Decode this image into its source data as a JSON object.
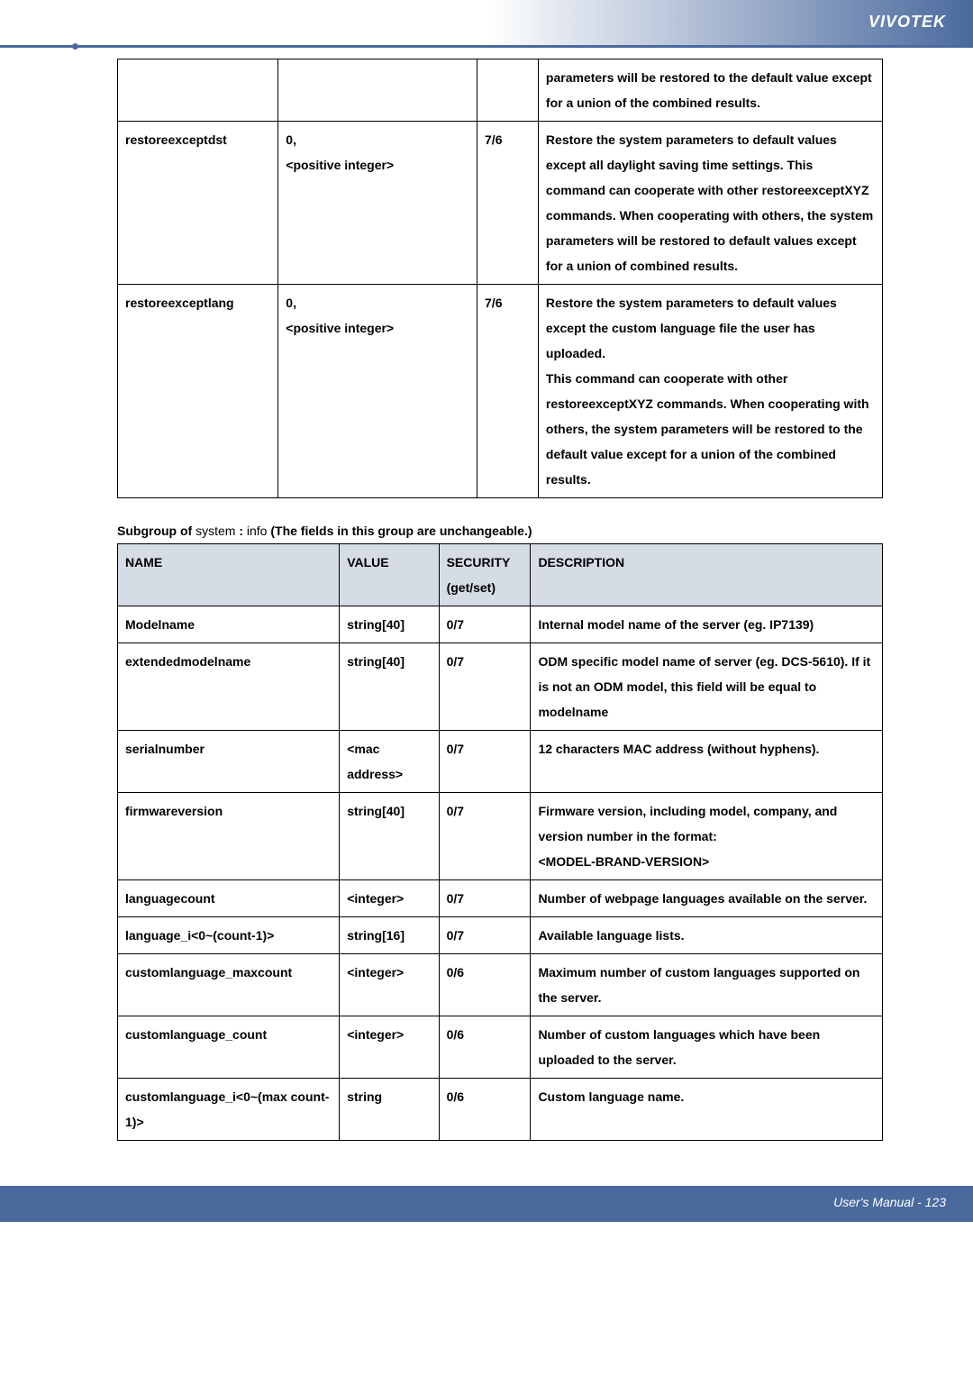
{
  "header": {
    "brand": "VIVOTEK"
  },
  "footer": {
    "page": "User's Manual - 123"
  },
  "table1": {
    "rows": [
      {
        "name": "",
        "value": "",
        "sec": "",
        "desc": "parameters will be restored to the default value except for a union of the combined results."
      },
      {
        "name": "restoreexceptdst",
        "value": "0,\n<positive integer>",
        "sec": "7/6",
        "desc": "Restore the system parameters to default values except all daylight saving time settings. This command can cooperate with other restoreexceptXYZ commands. When cooperating with others, the system parameters will be restored to default values except for a union of combined results."
      },
      {
        "name": "restoreexceptlang",
        "value": "0,\n<positive integer>",
        "sec": "7/6",
        "desc": "Restore the system parameters to default values except the custom language file the user has uploaded.\nThis command can cooperate with other restoreexceptXYZ commands. When cooperating with others, the system parameters will be restored to the default value except for a union of the combined results."
      }
    ]
  },
  "subgroup": {
    "prefix": "Subgroup of ",
    "system": "system",
    "colon": " : ",
    "info": "info",
    "suffix": "  (The fields in this group are unchangeable.)"
  },
  "table2": {
    "headers": {
      "name": "NAME",
      "value": "VALUE",
      "sec": "SECURITY (get/set)",
      "desc": "DESCRIPTION"
    },
    "rows": [
      {
        "name": "Modelname",
        "value": "string[40]",
        "sec": "0/7",
        "desc": "Internal model name of the server (eg. IP7139)"
      },
      {
        "name": "extendedmodelname",
        "value": "string[40]",
        "sec": "0/7",
        "desc": "ODM specific model name of server (eg. DCS-5610). If it is not an ODM model, this field will be equal to modelname"
      },
      {
        "name": "serialnumber",
        "value": "<mac address>",
        "sec": "0/7",
        "desc": "12 characters MAC address (without hyphens)."
      },
      {
        "name": "firmwareversion",
        "value": "string[40]",
        "sec": "0/7",
        "desc": "Firmware version, including model, company, and version number in the format:\n<MODEL-BRAND-VERSION>"
      },
      {
        "name": "languagecount",
        "value": "<integer>",
        "sec": "0/7",
        "desc": "Number of webpage languages available on the server."
      },
      {
        "name": "language_i<0~(count-1)>",
        "value": "string[16]",
        "sec": "0/7",
        "desc": "Available language lists."
      },
      {
        "name": "customlanguage_maxcount",
        "value": "<integer>",
        "sec": "0/6",
        "desc": "Maximum number of custom languages supported on the server."
      },
      {
        "name": "customlanguage_count",
        "value": "<integer>",
        "sec": "0/6",
        "desc": "Number    of custom languages which have been uploaded to the server."
      },
      {
        "name": "customlanguage_i<0~(max count-1)>",
        "value": "string",
        "sec": "0/6",
        "desc": "Custom language name."
      }
    ]
  }
}
